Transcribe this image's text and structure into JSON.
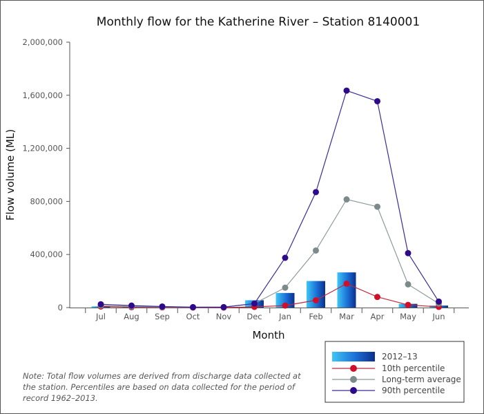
{
  "chart_data": {
    "type": "bar",
    "title": "Monthly flow for the Katherine River – Station 8140001",
    "xlabel": "Month",
    "ylabel": "Flow volume (ML)",
    "ylim": [
      0,
      2000000
    ],
    "yticks": [
      "0",
      "400,000",
      "800,000",
      "1,200,000",
      "1,600,000",
      "2,000,000"
    ],
    "categories": [
      "Jul",
      "Aug",
      "Sep",
      "Oct",
      "Nov",
      "Dec",
      "Jan",
      "Feb",
      "Mar",
      "Apr",
      "May",
      "Jun"
    ],
    "grid": false,
    "legend_position": "bottom-right",
    "series": [
      {
        "name": "2012–13",
        "kind": "bar",
        "color": "#1a6fd6",
        "values": [
          9000,
          5000,
          2000,
          1000,
          2000,
          55000,
          110000,
          200000,
          265000,
          0,
          28000,
          15000
        ]
      },
      {
        "name": "10th percentile",
        "kind": "line",
        "color": "#d0102a",
        "line_color": "#c0283a",
        "values": [
          8000,
          3000,
          1000,
          0,
          0,
          5000,
          15000,
          55000,
          180000,
          80000,
          20000,
          5000
        ]
      },
      {
        "name": "Long-term average",
        "kind": "line",
        "color": "#7b8a8b",
        "line_color": "#8c9a9a",
        "values": [
          15000,
          8000,
          4000,
          2000,
          3000,
          30000,
          150000,
          430000,
          815000,
          760000,
          175000,
          30000
        ]
      },
      {
        "name": "90th percentile",
        "kind": "line",
        "color": "#2e0a8a",
        "line_color": "#3a2a9a",
        "values": [
          25000,
          15000,
          8000,
          3000,
          3000,
          30000,
          375000,
          870000,
          1635000,
          1555000,
          410000,
          45000
        ]
      }
    ]
  },
  "note": "Note: Total flow volumes are derived from discharge data collected at the station. Percentiles are based on data collected for the period of record 1962–2013."
}
